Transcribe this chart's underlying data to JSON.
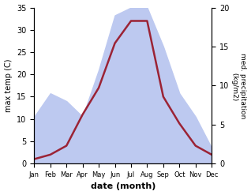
{
  "months": [
    "Jan",
    "Feb",
    "Mar",
    "Apr",
    "May",
    "Jun",
    "Jul",
    "Aug",
    "Sep",
    "Oct",
    "Nov",
    "Dec"
  ],
  "temperature": [
    1,
    2,
    4,
    11,
    17,
    27,
    32,
    32,
    15,
    9,
    4,
    2
  ],
  "precipitation": [
    6,
    9,
    8,
    6,
    12,
    19,
    20,
    20,
    15,
    9,
    6,
    2
  ],
  "temp_color": "#9b2335",
  "precip_fill_color": "#bdc9f0",
  "xlabel": "date (month)",
  "ylabel_left": "max temp (C)",
  "ylabel_right": "med. precipitation\n (kg/m2)",
  "ylim_left": [
    0,
    35
  ],
  "ylim_right": [
    0,
    20
  ],
  "temp_linewidth": 1.8,
  "bg_color": "#ffffff"
}
